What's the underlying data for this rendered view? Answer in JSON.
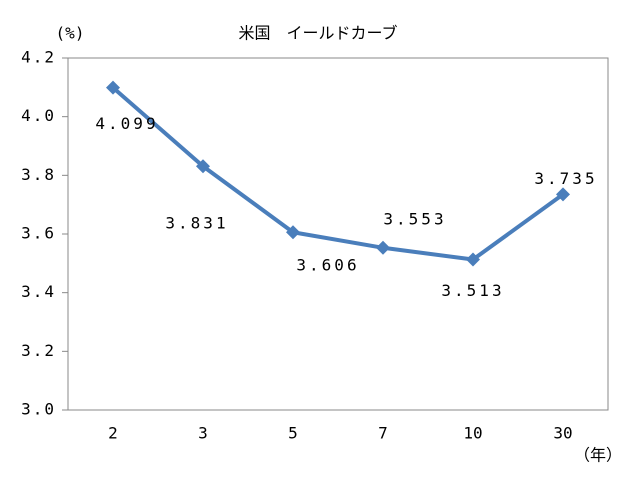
{
  "chart_data": {
    "type": "line",
    "title": "米国　イールドカーブ",
    "y_label": "(%)",
    "x_label": "（年）",
    "categories": [
      "2",
      "3",
      "5",
      "7",
      "10",
      "30"
    ],
    "values": [
      4.099,
      3.831,
      3.606,
      3.553,
      3.513,
      3.735
    ],
    "color": "#4a7ebb",
    "ylim": [
      3.0,
      4.2
    ],
    "yticks": [
      {
        "value": 3.0,
        "label": "3.0"
      },
      3.2,
      3.4,
      3.6,
      3.8,
      {
        "value": 4.0,
        "label": "4.0"
      },
      4.2
    ],
    "grid": false
  }
}
